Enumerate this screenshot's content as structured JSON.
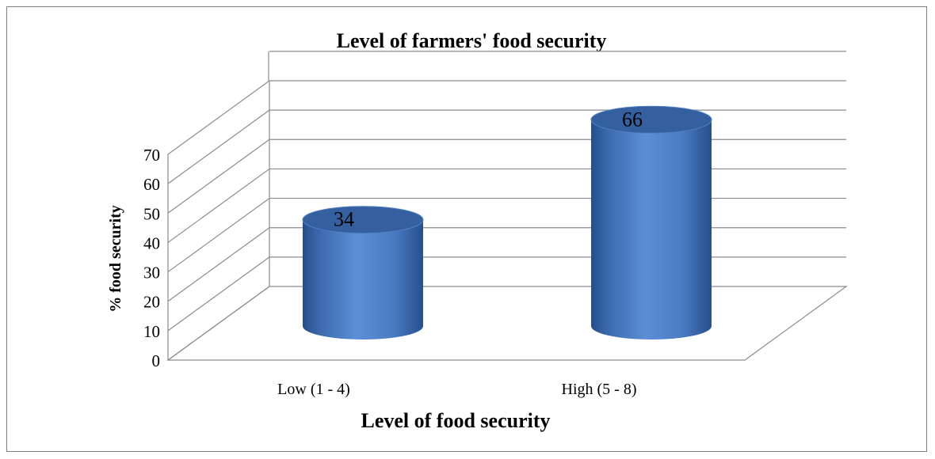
{
  "chart_data": {
    "type": "bar",
    "style": "3d-cylinder",
    "title": "Level of farmers' food security",
    "xlabel": "Level of food security",
    "ylabel": "% food security",
    "categories": [
      "Low (1 - 4)",
      "High (5 - 8)"
    ],
    "series": [
      {
        "values": [
          34,
          66
        ]
      }
    ],
    "data_labels": [
      "34",
      "66"
    ],
    "ylim": [
      0,
      70
    ],
    "yticks": [
      0,
      10,
      20,
      30,
      40,
      50,
      60,
      70
    ],
    "grid": true,
    "legend": "none",
    "colors": {
      "bar_light": "#5b8fd6",
      "bar_mid": "#3e6fb5",
      "bar_dark": "#244d8a",
      "bar_top": "#35609f",
      "gridline": "#8c8c8c",
      "border": "#7f7f7f"
    }
  }
}
